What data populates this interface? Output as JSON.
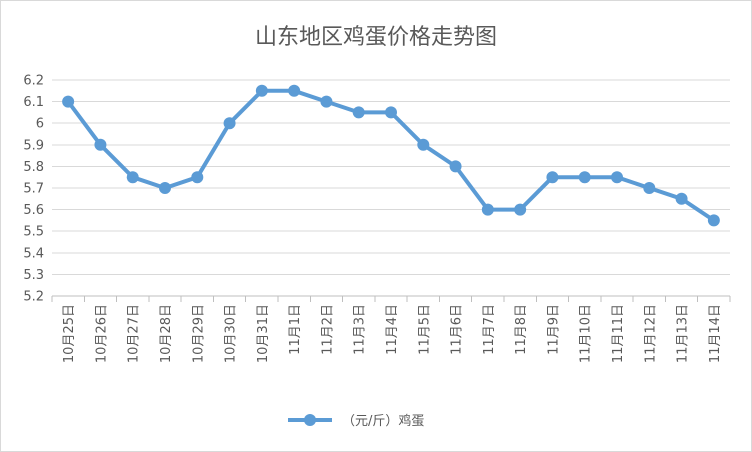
{
  "chart_data": {
    "type": "line",
    "title": "山东地区鸡蛋价格走势图",
    "categories": [
      "10月25日",
      "10月26日",
      "10月27日",
      "10月28日",
      "10月29日",
      "10月30日",
      "10月31日",
      "11月1日",
      "11月2日",
      "11月3日",
      "11月4日",
      "11月5日",
      "11月6日",
      "11月7日",
      "11月8日",
      "11月9日",
      "11月10日",
      "11月11日",
      "11月12日",
      "11月13日",
      "11月14日"
    ],
    "series": [
      {
        "name": "（元/斤）鸡蛋",
        "color": "#5b9bd5",
        "values": [
          6.1,
          5.9,
          5.75,
          5.7,
          5.75,
          6.0,
          6.15,
          6.15,
          6.1,
          6.05,
          6.05,
          5.9,
          5.8,
          5.6,
          5.6,
          5.75,
          5.75,
          5.75,
          5.7,
          5.65,
          5.55
        ]
      }
    ],
    "yticks": [
      "5.2",
      "5.3",
      "5.4",
      "5.5",
      "5.6",
      "5.7",
      "5.8",
      "5.9",
      "6",
      "6.1",
      "6.2"
    ],
    "ylim": [
      5.2,
      6.2
    ],
    "grid": true,
    "legend_position": "bottom"
  }
}
